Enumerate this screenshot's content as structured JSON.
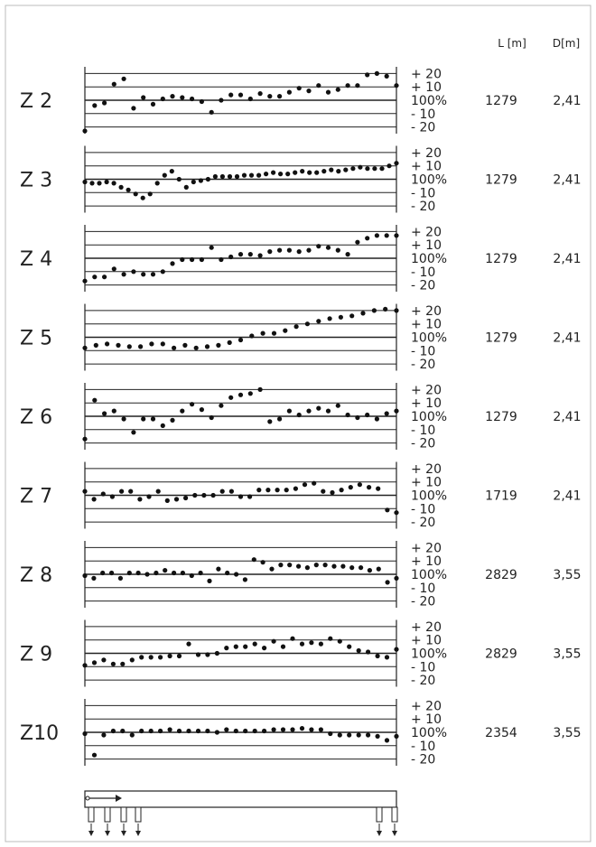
{
  "header": {
    "L": "L [m]",
    "D": "D[m]"
  },
  "chart_data": {
    "type": "scatter",
    "ytick_labels": [
      "+ 20",
      "+ 10",
      "100%",
      "- 10",
      "- 20"
    ],
    "ylim": [
      -25,
      25
    ],
    "grid": true,
    "rows": [
      {
        "label": "Z 2",
        "L": "1279",
        "D": "2,41",
        "values": [
          -23,
          -4,
          -2,
          12,
          16,
          -6,
          2,
          -3,
          1,
          3,
          2,
          1,
          -1,
          -9,
          0,
          4,
          4,
          1,
          5,
          3,
          3,
          6,
          9,
          7,
          11,
          6,
          8,
          11,
          11,
          19,
          20,
          18,
          11
        ]
      },
      {
        "label": "Z 3",
        "L": "1279",
        "D": "2,41",
        "values": [
          -2,
          -3,
          -3,
          -2,
          -3,
          -6,
          -8,
          -11,
          -14,
          -11,
          -3,
          3,
          6,
          0,
          -6,
          -2,
          -1,
          0,
          2,
          2,
          2,
          2,
          3,
          3,
          3,
          4,
          5,
          4,
          4,
          5,
          6,
          5,
          5,
          6,
          7,
          6,
          7,
          8,
          9,
          8,
          8,
          8,
          10,
          12
        ]
      },
      {
        "label": "Z 4",
        "L": "1279",
        "D": "2,41",
        "values": [
          -17,
          -14,
          -14,
          -8,
          -12,
          -10,
          -12,
          -12,
          -10,
          -4,
          -1,
          -1,
          -1,
          8,
          -1,
          1,
          3,
          3,
          2,
          5,
          6,
          6,
          5,
          6,
          9,
          8,
          6,
          3,
          12,
          15,
          17,
          17,
          17
        ]
      },
      {
        "label": "Z 5",
        "L": "1279",
        "D": "2,41",
        "values": [
          -8,
          -6,
          -5,
          -6,
          -7,
          -7,
          -5,
          -5,
          -8,
          -6,
          -8,
          -7,
          -6,
          -4,
          -2,
          1,
          3,
          3,
          5,
          8,
          10,
          12,
          14,
          15,
          16,
          18,
          20,
          21,
          20
        ]
      },
      {
        "label": "Z 6",
        "L": "1279",
        "D": "2,41",
        "values": [
          -17,
          12,
          2,
          4,
          -2,
          -12,
          -2,
          -2,
          -7,
          -3,
          4,
          9,
          5,
          -1,
          8,
          14,
          16,
          17,
          20,
          -4,
          -2,
          4,
          1,
          4,
          6,
          4,
          8,
          1,
          -1,
          1,
          -2,
          2,
          4
        ]
      },
      {
        "label": "Z 7",
        "L": "1719",
        "D": "2,41",
        "values": [
          3,
          -3,
          1,
          -1,
          3,
          3,
          -3,
          -1,
          3,
          -4,
          -3,
          -2,
          0,
          0,
          0,
          3,
          3,
          -1,
          -1,
          4,
          4,
          4,
          4,
          5,
          8,
          9,
          3,
          2,
          4,
          6,
          8,
          6,
          5,
          -11,
          -13
        ]
      },
      {
        "label": "Z 8",
        "L": "2829",
        "D": "3,55",
        "values": [
          -1,
          -3,
          1,
          1,
          -3,
          1,
          1,
          0,
          1,
          3,
          1,
          1,
          -1,
          1,
          -5,
          4,
          1,
          0,
          -4,
          11,
          9,
          4,
          7,
          7,
          6,
          5,
          7,
          7,
          6,
          6,
          5,
          5,
          3,
          4,
          -6,
          -3
        ]
      },
      {
        "label": "Z 9",
        "L": "2829",
        "D": "3,55",
        "values": [
          -9,
          -7,
          -5,
          -8,
          -8,
          -5,
          -3,
          -3,
          -3,
          -2,
          -2,
          7,
          -1,
          -1,
          0,
          4,
          5,
          5,
          7,
          4,
          9,
          5,
          11,
          7,
          8,
          7,
          11,
          9,
          5,
          2,
          1,
          -2,
          -3,
          3
        ]
      },
      {
        "label": "Z10",
        "L": "2354",
        "D": "3,55",
        "values": [
          -1,
          -17,
          -2,
          1,
          1,
          -2,
          1,
          1,
          1,
          2,
          1,
          1,
          1,
          1,
          0,
          2,
          1,
          1,
          1,
          1,
          2,
          2,
          2,
          3,
          2,
          2,
          -1,
          -2,
          -2,
          -2,
          -2,
          -3,
          -6,
          -3
        ]
      }
    ]
  }
}
